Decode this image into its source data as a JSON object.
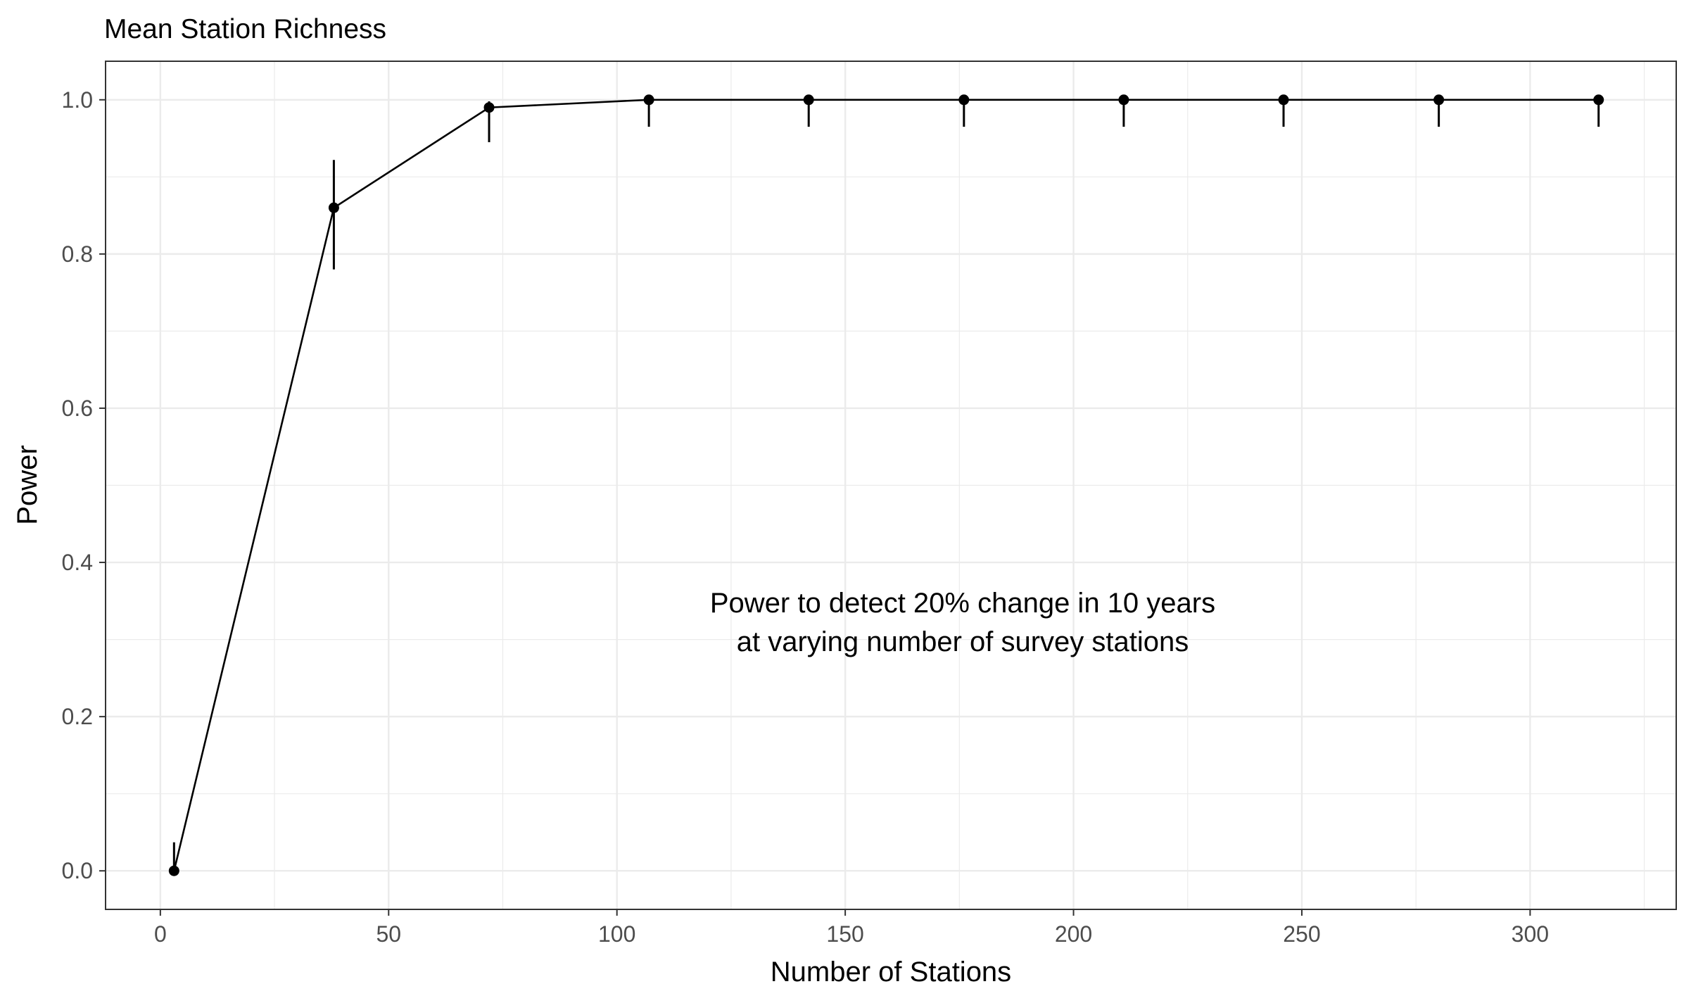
{
  "chart_data": {
    "type": "line",
    "title": "Mean Station Richness",
    "xlabel": "Number of Stations",
    "ylabel": "Power",
    "xlim": [
      -12,
      332
    ],
    "ylim": [
      -0.05,
      1.05
    ],
    "x_ticks": [
      0,
      50,
      100,
      150,
      200,
      250,
      300
    ],
    "y_ticks": [
      0.0,
      0.2,
      0.4,
      0.6,
      0.8,
      1.0
    ],
    "x_tick_labels": [
      "0",
      "50",
      "100",
      "150",
      "200",
      "250",
      "300"
    ],
    "y_tick_labels": [
      "0.0",
      "0.2",
      "0.4",
      "0.6",
      "0.8",
      "1.0"
    ],
    "grid": true,
    "theme": "bw",
    "annotation": [
      "Power to detect 20% change in 10 years",
      "at varying number of survey stations"
    ],
    "series": [
      {
        "x": [
          3,
          38,
          72,
          107,
          142,
          176,
          211,
          246,
          280,
          315
        ],
        "y": [
          0.0,
          0.86,
          0.99,
          1.0,
          1.0,
          1.0,
          1.0,
          1.0,
          1.0,
          1.0
        ],
        "lower": [
          0.0,
          0.78,
          0.945,
          0.965,
          0.965,
          0.965,
          0.965,
          0.965,
          0.965,
          0.965
        ],
        "upper": [
          0.037,
          0.922,
          0.998,
          1.0,
          1.0,
          1.0,
          1.0,
          1.0,
          1.0,
          1.0
        ]
      }
    ],
    "colors": {
      "line": "#000000",
      "point": "#000000",
      "grid": "#ebebeb",
      "panel_border": "#333333",
      "tick_label": "#4d4d4d"
    }
  }
}
